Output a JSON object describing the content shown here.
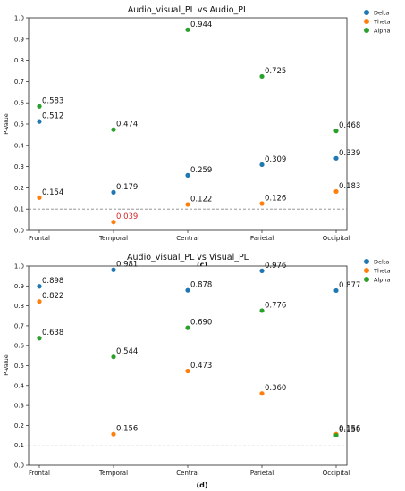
{
  "colors": {
    "Delta": "#1f77b4",
    "Theta": "#ff7f0e",
    "Alpha": "#2ca02c",
    "highlight": "#d62728",
    "threshold": "#888888"
  },
  "chart_data": [
    {
      "type": "scatter",
      "title": "Audio_visual_PL vs Audio_PL",
      "ylabel": "P-Value",
      "xlabel": "",
      "categories": [
        "Frontal",
        "Temporal",
        "Central",
        "Parietal",
        "Occipital"
      ],
      "ylim": [
        0,
        1.0
      ],
      "yticks": [
        "0.0",
        "0.1",
        "0.2",
        "0.3",
        "0.4",
        "0.5",
        "0.6",
        "0.7",
        "0.8",
        "0.9",
        "1.0"
      ],
      "threshold": 0.1,
      "legend_position": "outside top-right",
      "caption": "(c)",
      "series": [
        {
          "name": "Delta",
          "values": [
            0.512,
            0.179,
            0.259,
            0.309,
            0.339
          ],
          "labels": [
            "0.512",
            "0.179",
            "0.259",
            "0.309",
            "0.339"
          ]
        },
        {
          "name": "Theta",
          "values": [
            0.154,
            0.039,
            0.122,
            0.126,
            0.183
          ],
          "labels": [
            "0.154",
            "0.039",
            "0.122",
            "0.126",
            "0.183"
          ]
        },
        {
          "name": "Alpha",
          "values": [
            0.583,
            0.474,
            0.944,
            0.725,
            0.468
          ],
          "labels": [
            "0.583",
            "0.474",
            "0.944",
            "0.725",
            "0.468"
          ]
        }
      ]
    },
    {
      "type": "scatter",
      "title": "Audio_visual_PL vs Visual_PL",
      "ylabel": "P-Value",
      "xlabel": "",
      "categories": [
        "Frontal",
        "Temporal",
        "Central",
        "Parietal",
        "Occipital"
      ],
      "ylim": [
        0,
        1.0
      ],
      "yticks": [
        "0.0",
        "0.1",
        "0.2",
        "0.3",
        "0.4",
        "0.5",
        "0.6",
        "0.7",
        "0.8",
        "0.9",
        "1.0"
      ],
      "threshold": 0.1,
      "legend_position": "outside top-right",
      "caption": "(d)",
      "series": [
        {
          "name": "Delta",
          "values": [
            0.898,
            0.981,
            0.878,
            0.976,
            0.877
          ],
          "labels": [
            "0.898",
            "0.981",
            "0.878",
            "0.976",
            "0.877"
          ]
        },
        {
          "name": "Theta",
          "values": [
            0.822,
            0.156,
            0.473,
            0.36,
            0.156
          ],
          "labels": [
            "0.822",
            "0.156",
            "0.473",
            "0.360",
            "0.156"
          ]
        },
        {
          "name": "Alpha",
          "values": [
            0.638,
            0.544,
            0.69,
            0.776,
            0.15
          ],
          "labels": [
            "0.638",
            "0.544",
            "0.690",
            "0.776",
            "0.150"
          ]
        }
      ]
    }
  ]
}
